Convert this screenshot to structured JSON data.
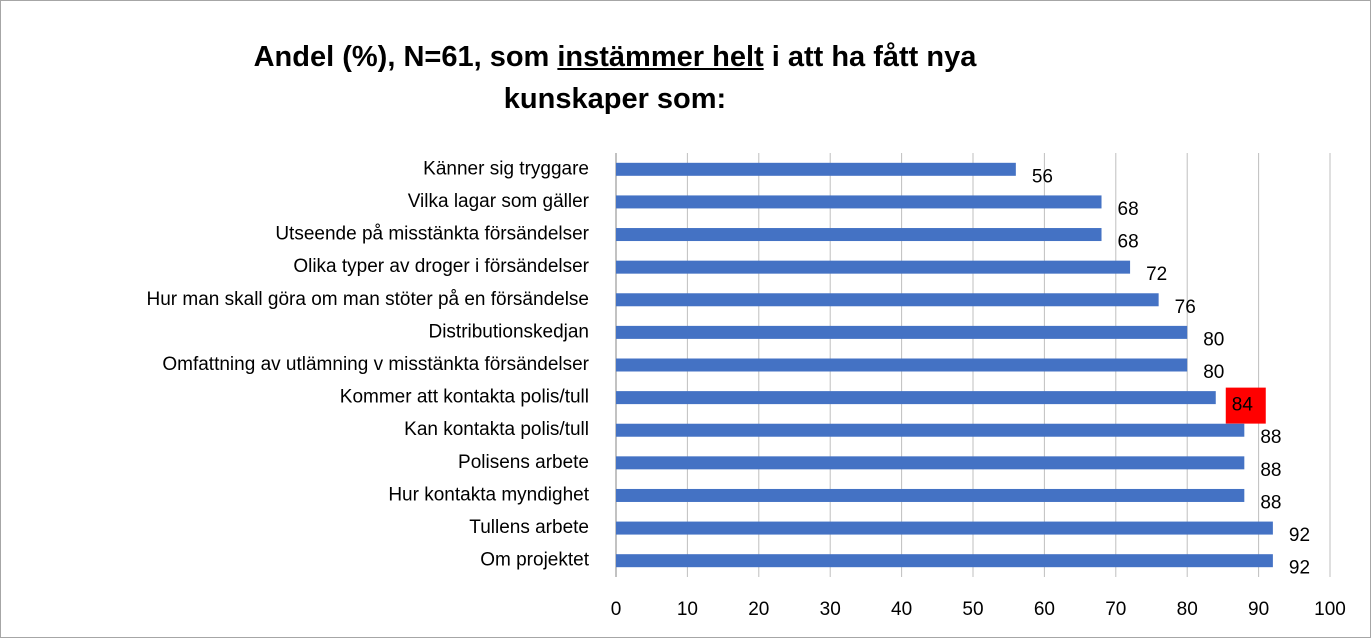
{
  "chart_data": {
    "type": "bar",
    "orientation": "horizontal",
    "title": [
      "Andel (%), N=61,  som ",
      "instämmer helt",
      " i att ha fått nya kunskaper som:"
    ],
    "categories": [
      "Känner sig tryggare",
      "Vilka lagar som gäller",
      "Utseende på misstänkta försändelser",
      "Olika typer av droger i försändelser",
      "Hur man skall göra om man stöter på en försändelse",
      "Distributionskedjan",
      "Omfattning av utlämning v misstänkta försändelser",
      "Kommer att kontakta polis/tull",
      "Kan kontakta polis/tull",
      "Polisens arbete",
      "Hur kontakta myndighet",
      "Tullens arbete",
      "Om projektet"
    ],
    "values": [
      56,
      68,
      68,
      72,
      76,
      80,
      80,
      84,
      88,
      88,
      88,
      92,
      92
    ],
    "color": "#4472c4",
    "highlight": 7,
    "highlight_color": "#ff0000",
    "xlim": [
      0,
      100
    ],
    "xticks": [
      0,
      10,
      20,
      30,
      40,
      50,
      60,
      70,
      80,
      90,
      100
    ],
    "grid": true
  }
}
